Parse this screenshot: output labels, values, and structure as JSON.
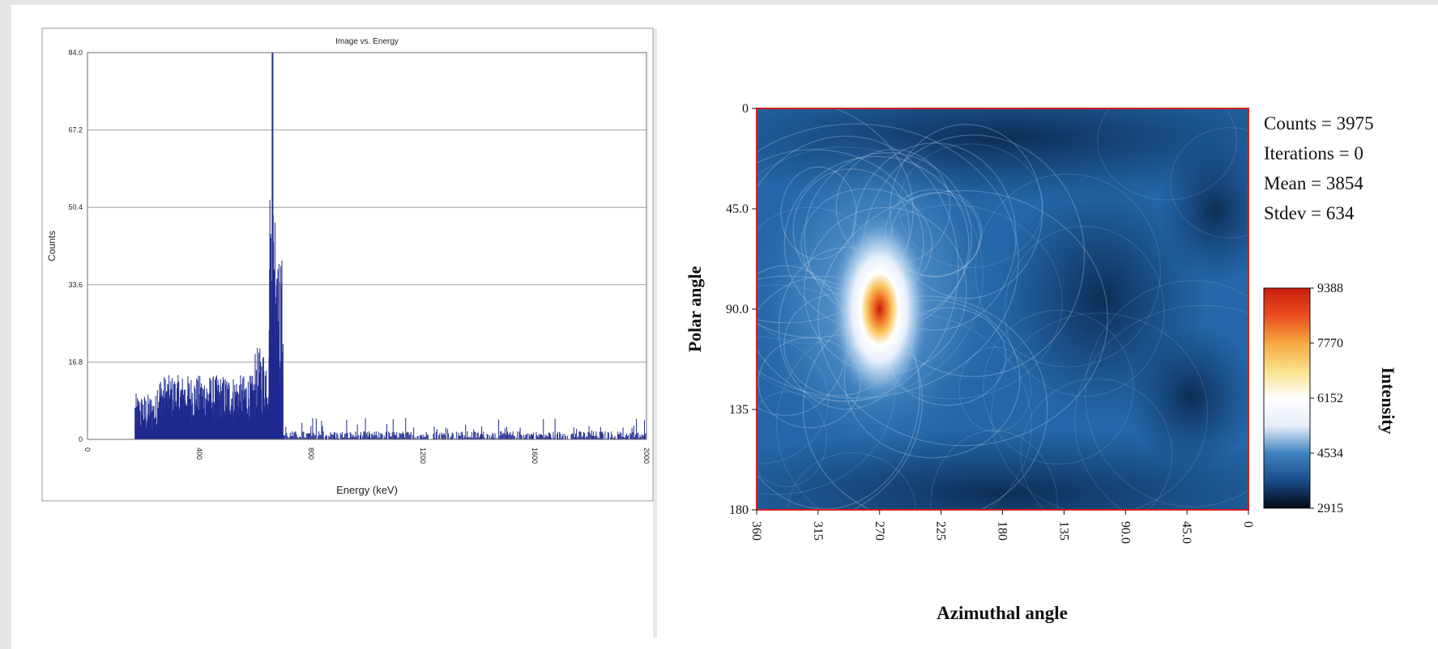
{
  "chart_data": [
    {
      "type": "bar",
      "title": "Image vs. Energy",
      "xlabel": "Energy (keV)",
      "ylabel": "Counts",
      "xlim": [
        0,
        2000
      ],
      "ylim": [
        0,
        84.0
      ],
      "x_ticks": [
        "0",
        "400",
        "800",
        "1200",
        "1600",
        "2000"
      ],
      "y_ticks": [
        "0",
        "16.8",
        "33.6",
        "50.4",
        "67.2",
        "84.0"
      ],
      "grid": true,
      "colors": {
        "bars": "#1f2a8f",
        "grid": "#a0a0a0",
        "frame": "#9a9a9a"
      },
      "spectrum_segments": [
        {
          "x": [
            170,
            250
          ],
          "y_range": [
            1,
            10
          ]
        },
        {
          "x": [
            250,
            600
          ],
          "y_range": [
            4,
            14
          ]
        },
        {
          "x": [
            600,
            650
          ],
          "y_range": [
            5,
            20
          ]
        },
        {
          "x": [
            650,
            680
          ],
          "y_range": [
            20,
            55
          ]
        },
        {
          "x": [
            680,
            700
          ],
          "y_range": [
            10,
            40
          ]
        },
        {
          "x": [
            700,
            2000
          ],
          "y_range": [
            0,
            3
          ]
        }
      ],
      "peak": {
        "x": 662,
        "y": 84.0
      }
    },
    {
      "type": "heatmap",
      "xlabel": "Azimuthal angle",
      "ylabel": "Polar angle",
      "xlim": [
        360,
        0
      ],
      "ylim": [
        0,
        180
      ],
      "x_ticks": [
        "360",
        "315",
        "270",
        "225",
        "180",
        "135",
        "90.0",
        "45.0",
        "0"
      ],
      "y_ticks": [
        "0",
        "45.0",
        "90.0",
        "135",
        "180"
      ],
      "hotspot": {
        "azimuth": 270,
        "polar": 90
      },
      "colorbar": {
        "label": "Intensity",
        "min": 2915,
        "max": 9388,
        "ticks": [
          "9388",
          "7770",
          "6152",
          "4534",
          "2915"
        ],
        "colors": [
          "#020814",
          "#1a4d8a",
          "#3f83c0",
          "#e6eefa",
          "#ffffff",
          "#f9e18a",
          "#f6a940",
          "#ea4e1f",
          "#c81e0e"
        ]
      },
      "frame_color": "#d81f1f",
      "stats": [
        "Counts = 3975",
        "Iterations = 0",
        "Mean = 3854",
        "Stdev = 634"
      ]
    }
  ]
}
